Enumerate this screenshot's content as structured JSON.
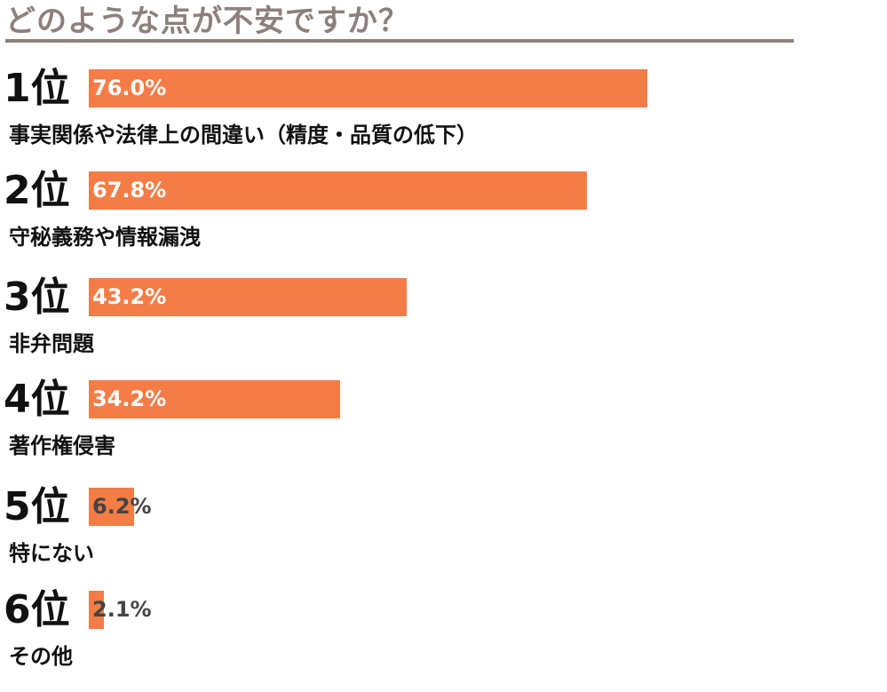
{
  "chart_data": {
    "type": "bar",
    "orientation": "horizontal",
    "title": "どのような点が不安ですか？",
    "xlim": [
      0,
      100
    ],
    "grid": false,
    "unit": "%",
    "bar_color": "#f47c46",
    "items": [
      {
        "rank": "1位",
        "label": "事実関係や法律上の間違い（精度・品質の低下）",
        "value": 76.0,
        "value_label": "76.0%"
      },
      {
        "rank": "2位",
        "label": "守秘義務や情報漏洩",
        "value": 67.8,
        "value_label": "67.8%"
      },
      {
        "rank": "3位",
        "label": "非弁問題",
        "value": 43.2,
        "value_label": "43.2%"
      },
      {
        "rank": "4位",
        "label": "著作権侵害",
        "value": 34.2,
        "value_label": "34.2%"
      },
      {
        "rank": "5位",
        "label": "特にない",
        "value": 6.2,
        "value_label": "6.2%"
      },
      {
        "rank": "6位",
        "label": "その他",
        "value": 2.1,
        "value_label": "2.1%"
      }
    ]
  }
}
